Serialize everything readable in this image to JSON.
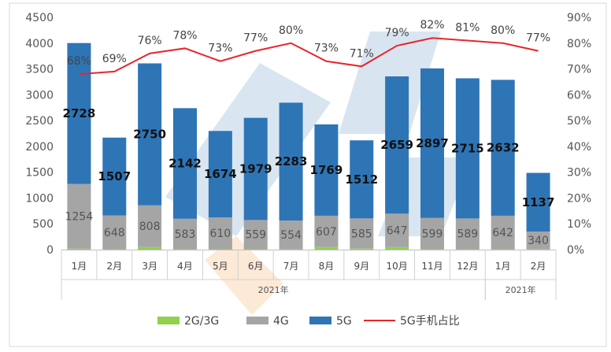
{
  "chart_data": {
    "type": "bar",
    "stacked": true,
    "categories": [
      "1月",
      "2月",
      "3月",
      "4月",
      "5月",
      "6月",
      "7月",
      "8月",
      "9月",
      "10月",
      "11月",
      "12月",
      "1月",
      "2月"
    ],
    "groups": [
      {
        "label": "2021年",
        "start": 0,
        "end": 11
      },
      {
        "label": "2021年",
        "start": 12,
        "end": 13
      }
    ],
    "series": [
      {
        "name": "2G/3G",
        "color": "#92D050",
        "values": [
          20,
          15,
          50,
          15,
          15,
          15,
          10,
          50,
          20,
          50,
          15,
          15,
          15,
          10
        ]
      },
      {
        "name": "4G",
        "color": "#A5A5A5",
        "values": [
          1254,
          648,
          808,
          583,
          610,
          559,
          554,
          607,
          585,
          647,
          599,
          589,
          642,
          340
        ]
      },
      {
        "name": "5G",
        "color": "#2E75B6",
        "values": [
          2728,
          1507,
          2750,
          2142,
          1674,
          1979,
          2283,
          1769,
          1512,
          2659,
          2897,
          2715,
          2632,
          1137
        ]
      }
    ],
    "line_series": {
      "name": "5G手机占比",
      "color": "#E8262B",
      "axis": "right",
      "values": [
        68,
        69,
        76,
        78,
        73,
        77,
        80,
        73,
        71,
        79,
        82,
        81,
        80,
        77
      ]
    },
    "label_5g": [
      "2728",
      "1507",
      "2750",
      "2142",
      "1674",
      "1979",
      "2283",
      "1769",
      "1512",
      "2659",
      "2897",
      "2715",
      "2632",
      "1137"
    ],
    "label_4g": [
      "1254",
      "648",
      "808",
      "583",
      "610",
      "559",
      "554",
      "607",
      "585",
      "647",
      "599",
      "589",
      "642",
      "340"
    ],
    "label_pct": [
      "68%",
      "69%",
      "76%",
      "78%",
      "73%",
      "77%",
      "80%",
      "73%",
      "71%",
      "79%",
      "82%",
      "81%",
      "80%",
      "77%"
    ],
    "y_left": {
      "min": 0,
      "max": 4500,
      "ticks": [
        "0",
        "500",
        "1000",
        "1500",
        "2000",
        "2500",
        "3000",
        "3500",
        "4000",
        "4500"
      ]
    },
    "y_right": {
      "min": 0,
      "max": 90,
      "ticks": [
        "0%",
        "10%",
        "20%",
        "30%",
        "40%",
        "50%",
        "60%",
        "70%",
        "80%",
        "90%"
      ]
    },
    "legend": {
      "position": "bottom",
      "items": [
        "2G/3G",
        "4G",
        "5G",
        "5G手机占比"
      ]
    },
    "grid": false
  }
}
